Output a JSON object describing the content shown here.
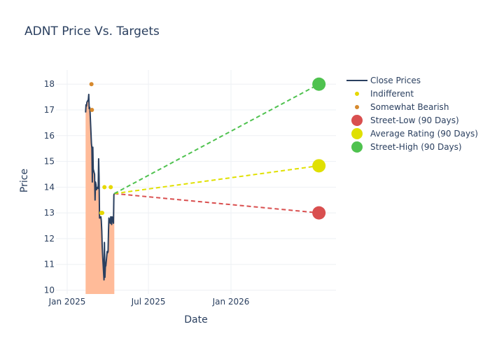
{
  "chart_data": {
    "type": "line",
    "title": "ADNT Price Vs. Targets",
    "xlabel": "Date",
    "ylabel": "Price",
    "xlim": [
      "2024-12-07",
      "2026-08-23"
    ],
    "ylim": [
      9.85,
      18.55
    ],
    "x_ticks": [
      {
        "date": "2025-01-01",
        "label": "Jan 2025"
      },
      {
        "date": "2025-07-01",
        "label": "Jul 2025"
      },
      {
        "date": "2026-01-01",
        "label": "Jan 2026"
      }
    ],
    "y_ticks": [
      10,
      11,
      12,
      13,
      14,
      15,
      16,
      17,
      18
    ],
    "grid": true,
    "legend_position": "right",
    "series": [
      {
        "name": "Close Prices",
        "kind": "line",
        "color": "#2a3f5f",
        "fill_color": "#ffbb99",
        "points": [
          [
            "2025-02-11",
            16.9
          ],
          [
            "2025-02-12",
            17.2
          ],
          [
            "2025-02-13",
            17.15
          ],
          [
            "2025-02-14",
            17.3
          ],
          [
            "2025-02-17",
            17.4
          ],
          [
            "2025-02-18",
            17.6
          ],
          [
            "2025-02-19",
            17.05
          ],
          [
            "2025-02-20",
            17.1
          ],
          [
            "2025-02-21",
            16.9
          ],
          [
            "2025-02-24",
            15.7
          ],
          [
            "2025-02-25",
            15.5
          ],
          [
            "2025-02-26",
            14.2
          ],
          [
            "2025-02-27",
            15.55
          ],
          [
            "2025-02-28",
            14.7
          ],
          [
            "2025-03-03",
            14.5
          ],
          [
            "2025-03-04",
            13.5
          ],
          [
            "2025-03-05",
            14.2
          ],
          [
            "2025-03-06",
            14.1
          ],
          [
            "2025-03-07",
            13.9
          ],
          [
            "2025-03-10",
            14.0
          ],
          [
            "2025-03-11",
            13.95
          ],
          [
            "2025-03-12",
            15.1
          ],
          [
            "2025-03-13",
            14.4
          ],
          [
            "2025-03-14",
            12.8
          ],
          [
            "2025-03-17",
            12.85
          ],
          [
            "2025-03-18",
            12.7
          ],
          [
            "2025-03-19",
            12.3
          ],
          [
            "2025-03-20",
            11.7
          ],
          [
            "2025-03-21",
            11.3
          ],
          [
            "2025-03-24",
            10.4
          ],
          [
            "2025-03-25",
            11.85
          ],
          [
            "2025-03-26",
            10.5
          ],
          [
            "2025-03-27",
            10.9
          ],
          [
            "2025-03-28",
            10.95
          ],
          [
            "2025-03-31",
            11.5
          ],
          [
            "2025-04-01",
            11.45
          ],
          [
            "2025-04-02",
            11.5
          ],
          [
            "2025-04-03",
            12.3
          ],
          [
            "2025-04-04",
            12.8
          ],
          [
            "2025-04-07",
            12.6
          ],
          [
            "2025-04-08",
            12.85
          ],
          [
            "2025-04-09",
            12.75
          ],
          [
            "2025-04-10",
            12.55
          ],
          [
            "2025-04-11",
            12.85
          ],
          [
            "2025-04-14",
            12.6
          ],
          [
            "2025-04-15",
            13.7
          ],
          [
            "2025-04-16",
            13.75
          ]
        ]
      },
      {
        "name": "Indifferent",
        "kind": "markers",
        "color": "#e6d800",
        "points": [
          [
            "2025-03-18",
            13.0
          ],
          [
            "2025-03-20",
            13.0
          ],
          [
            "2025-03-25",
            14.0
          ],
          [
            "2025-04-08",
            14.0
          ]
        ]
      },
      {
        "name": "Somewhat Bearish",
        "kind": "markers",
        "color": "#d6892e",
        "points": [
          [
            "2025-02-24",
            18.0
          ],
          [
            "2025-02-25",
            17.0
          ]
        ]
      },
      {
        "name": "Street-Low (90 Days)",
        "kind": "target",
        "color": "#d94f4f",
        "points": [
          [
            "2025-04-16",
            13.75
          ],
          [
            "2026-07-16",
            13.0
          ]
        ]
      },
      {
        "name": "Average Rating (90 Days)",
        "kind": "target",
        "color": "#e0e000",
        "points": [
          [
            "2025-04-16",
            13.75
          ],
          [
            "2026-07-16",
            14.83
          ]
        ]
      },
      {
        "name": "Street-High (90 Days)",
        "kind": "target",
        "color": "#4fc24f",
        "points": [
          [
            "2025-04-16",
            13.75
          ],
          [
            "2026-07-16",
            18.0
          ]
        ]
      }
    ]
  }
}
